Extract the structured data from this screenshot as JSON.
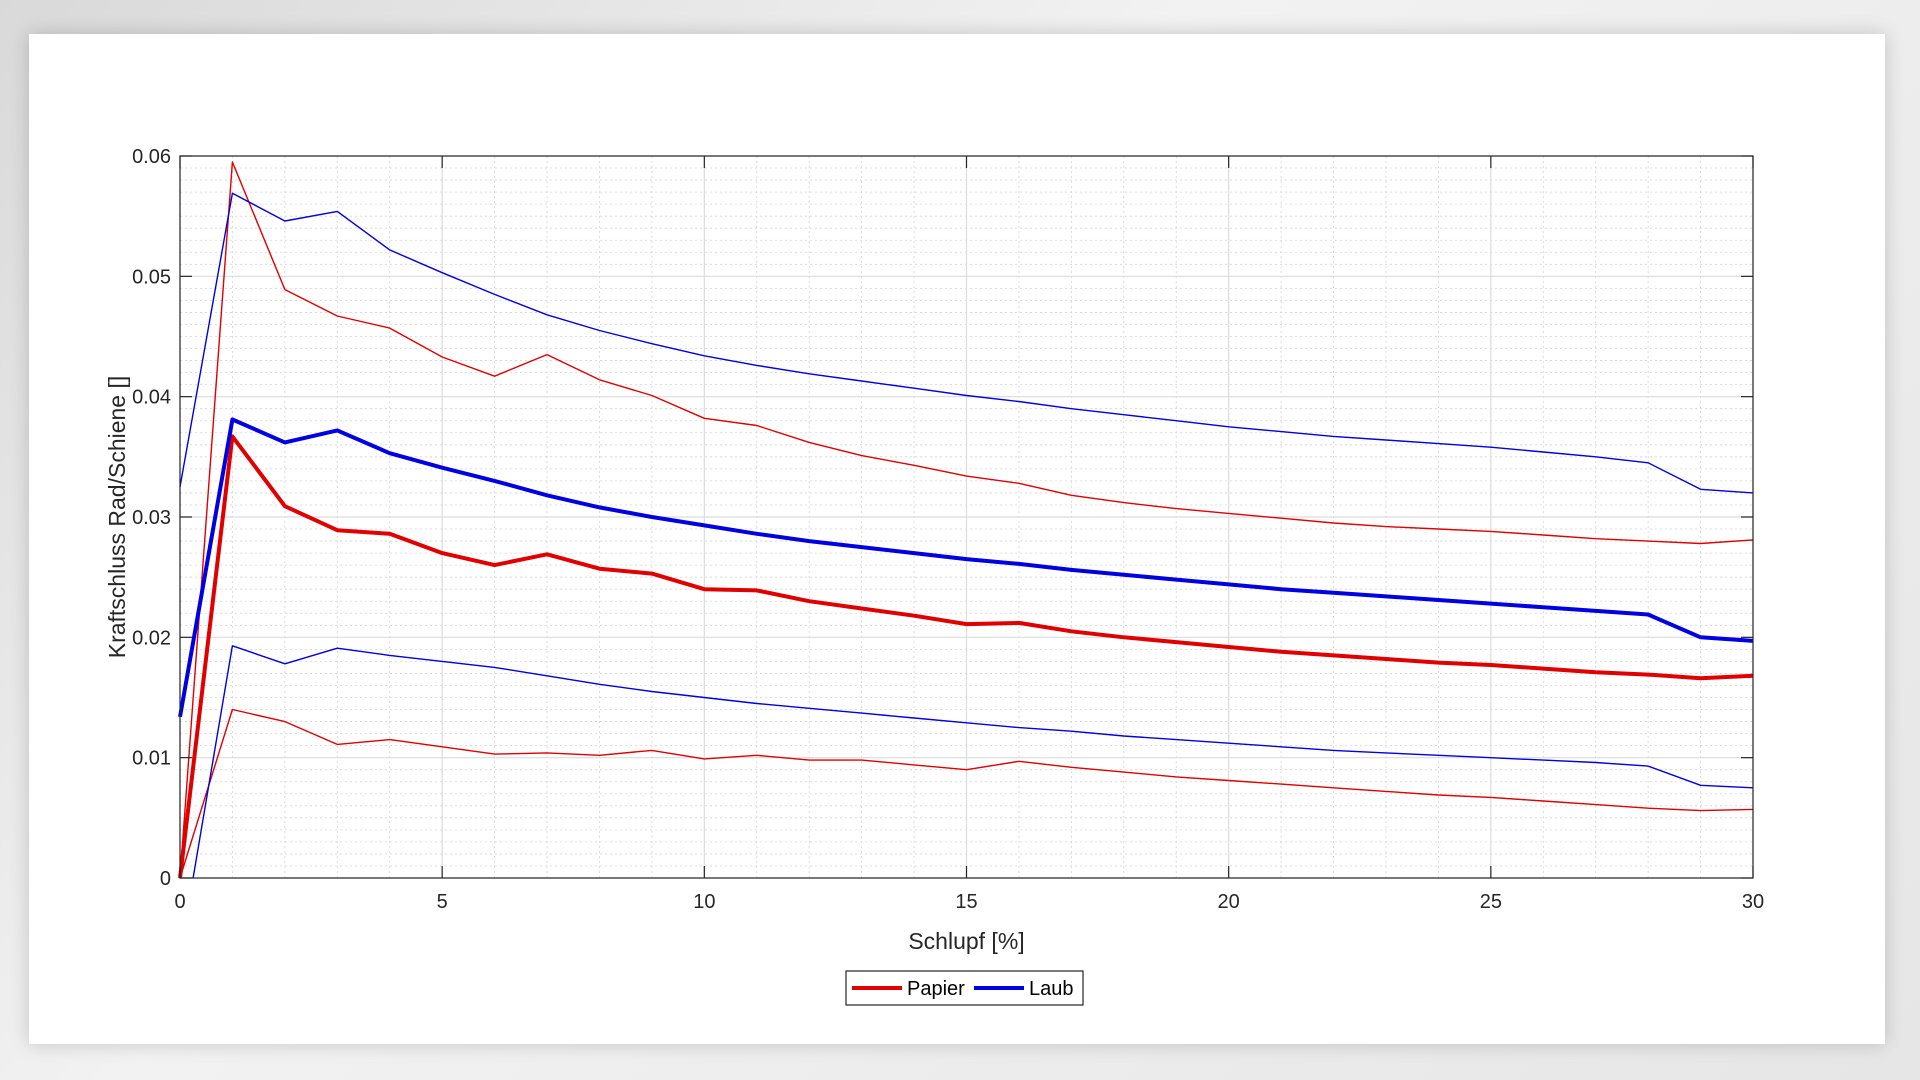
{
  "chart_data": {
    "type": "line",
    "xlabel": "Schlupf [%]",
    "ylabel": "Kraftschluss Rad/Schiene []",
    "xlim": [
      0,
      30
    ],
    "ylim": [
      0,
      0.06
    ],
    "xticks": [
      0,
      5,
      10,
      15,
      20,
      25,
      30
    ],
    "xtick_labels": [
      "0",
      "5",
      "10",
      "15",
      "20",
      "25",
      "30"
    ],
    "yticks": [
      0,
      0.01,
      0.02,
      0.03,
      0.04,
      0.05,
      0.06
    ],
    "ytick_labels": [
      "0",
      "0.01",
      "0.02",
      "0.03",
      "0.04",
      "0.05",
      "0.06"
    ],
    "grid": true,
    "minor_grid": true,
    "legend": {
      "placement": "bottom-center",
      "entries": [
        "Papier",
        "Laub"
      ]
    },
    "series": [
      {
        "name": "Papier",
        "role": "mean",
        "color": "#e00000",
        "x": [
          0,
          1,
          2,
          3,
          4,
          5,
          6,
          7,
          8,
          9,
          10,
          11,
          12,
          13,
          14,
          15,
          16,
          17,
          18,
          19,
          20,
          21,
          22,
          23,
          24,
          25,
          26,
          27,
          28,
          29,
          30
        ],
        "y": [
          0,
          0.0367,
          0.0309,
          0.0289,
          0.0286,
          0.027,
          0.026,
          0.0269,
          0.0257,
          0.0253,
          0.024,
          0.0239,
          0.023,
          0.0224,
          0.0218,
          0.0211,
          0.0212,
          0.0205,
          0.02,
          0.0196,
          0.0192,
          0.0188,
          0.0185,
          0.0182,
          0.0179,
          0.0177,
          0.0174,
          0.0171,
          0.0169,
          0.0166,
          0.0168
        ]
      },
      {
        "role": "upper bound",
        "color": "#e00000",
        "x": [
          0,
          1,
          2,
          3,
          4,
          5,
          6,
          7,
          8,
          9,
          10,
          11,
          12,
          13,
          14,
          15,
          16,
          17,
          18,
          19,
          20,
          21,
          22,
          23,
          24,
          25,
          26,
          27,
          28,
          29,
          30
        ],
        "y": [
          0,
          0.0595,
          0.0489,
          0.0467,
          0.0457,
          0.0433,
          0.0417,
          0.0435,
          0.0414,
          0.0401,
          0.0382,
          0.0376,
          0.0362,
          0.0351,
          0.0343,
          0.0334,
          0.0328,
          0.0318,
          0.0312,
          0.0307,
          0.0303,
          0.0299,
          0.0295,
          0.0292,
          0.029,
          0.0288,
          0.0285,
          0.0282,
          0.028,
          0.0278,
          0.0281
        ]
      },
      {
        "role": "lower bound",
        "color": "#e00000",
        "x": [
          0,
          1,
          2,
          3,
          4,
          5,
          6,
          7,
          8,
          9,
          10,
          11,
          12,
          13,
          14,
          15,
          16,
          17,
          18,
          19,
          20,
          21,
          22,
          23,
          24,
          25,
          26,
          27,
          28,
          29,
          30
        ],
        "y": [
          0,
          0.014,
          0.013,
          0.0111,
          0.0115,
          0.0109,
          0.0103,
          0.0104,
          0.0102,
          0.0106,
          0.0099,
          0.0102,
          0.0098,
          0.0098,
          0.0094,
          0.009,
          0.0097,
          0.0092,
          0.0088,
          0.0084,
          0.0081,
          0.0078,
          0.0075,
          0.0072,
          0.0069,
          0.0067,
          0.0064,
          0.0061,
          0.0058,
          0.0056,
          0.0057
        ]
      },
      {
        "name": "Laub",
        "role": "mean",
        "color": "#0000e0",
        "x": [
          0,
          1,
          2,
          3,
          4,
          5,
          6,
          7,
          8,
          9,
          10,
          11,
          12,
          13,
          14,
          15,
          16,
          17,
          18,
          19,
          20,
          21,
          22,
          23,
          24,
          25,
          26,
          27,
          28,
          29,
          30
        ],
        "y": [
          0.0134,
          0.0381,
          0.0362,
          0.0372,
          0.0353,
          0.0341,
          0.033,
          0.0318,
          0.0308,
          0.03,
          0.0293,
          0.0286,
          0.028,
          0.0275,
          0.027,
          0.0265,
          0.0261,
          0.0256,
          0.0252,
          0.0248,
          0.0244,
          0.024,
          0.0237,
          0.0234,
          0.0231,
          0.0228,
          0.0225,
          0.0222,
          0.0219,
          0.02,
          0.0197
        ]
      },
      {
        "role": "upper bound",
        "color": "#0000e0",
        "x": [
          0,
          1,
          2,
          3,
          4,
          5,
          6,
          7,
          8,
          9,
          10,
          11,
          12,
          13,
          14,
          15,
          16,
          17,
          18,
          19,
          20,
          21,
          22,
          23,
          24,
          25,
          26,
          27,
          28,
          29,
          30
        ],
        "y": [
          0.0325,
          0.0569,
          0.0546,
          0.0554,
          0.0522,
          0.0503,
          0.0485,
          0.0468,
          0.0455,
          0.0444,
          0.0434,
          0.0426,
          0.0419,
          0.0413,
          0.0407,
          0.0401,
          0.0396,
          0.039,
          0.0385,
          0.038,
          0.0375,
          0.0371,
          0.0367,
          0.0364,
          0.0361,
          0.0358,
          0.0354,
          0.035,
          0.0345,
          0.0323,
          0.032
        ]
      },
      {
        "role": "lower bound",
        "color": "#0000e0",
        "x": [
          0.25,
          1,
          2,
          3,
          4,
          5,
          6,
          7,
          8,
          9,
          10,
          11,
          12,
          13,
          14,
          15,
          16,
          17,
          18,
          19,
          20,
          21,
          22,
          23,
          24,
          25,
          26,
          27,
          28,
          29,
          30
        ],
        "y": [
          0,
          0.0193,
          0.0178,
          0.0191,
          0.0185,
          0.018,
          0.0175,
          0.0168,
          0.0161,
          0.0155,
          0.015,
          0.0145,
          0.0141,
          0.0137,
          0.0133,
          0.0129,
          0.0125,
          0.0122,
          0.0118,
          0.0115,
          0.0112,
          0.0109,
          0.0106,
          0.0104,
          0.0102,
          0.01,
          0.0098,
          0.0096,
          0.0093,
          0.0077,
          0.0075
        ]
      }
    ]
  }
}
